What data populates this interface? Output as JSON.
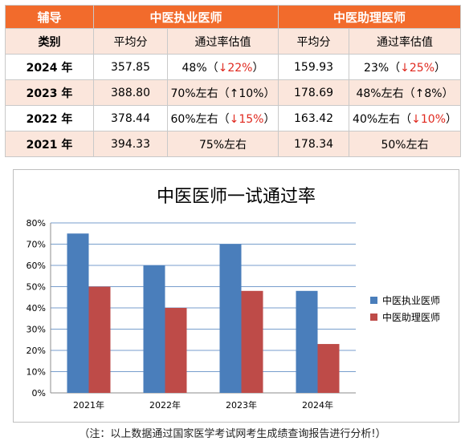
{
  "table": {
    "header": {
      "c0": "辅导",
      "group1": "中医执业医师",
      "group2": "中医助理医师"
    },
    "subheader": {
      "c0": "类别",
      "avg": "平均分",
      "rate": "通过率估值"
    },
    "rows": [
      {
        "year": "2024 年",
        "a_avg": "357.85",
        "a_rate": "48%",
        "a_chg": "↓22%",
        "b_avg": "159.93",
        "b_rate": "23%",
        "b_chg": "↓25%"
      },
      {
        "year": "2023 年",
        "a_avg": "388.80",
        "a_rate": "70%左右",
        "a_chg": "↑10%",
        "b_avg": "178.69",
        "b_rate": "48%左右",
        "b_chg": "↑8%"
      },
      {
        "year": "2022 年",
        "a_avg": "378.44",
        "a_rate": "60%左右",
        "a_chg": "↓15%",
        "b_avg": "163.42",
        "b_rate": "40%左右",
        "b_chg": "↓10%"
      },
      {
        "year": "2021 年",
        "a_avg": "394.33",
        "a_rate": "75%左右",
        "a_chg": "",
        "b_avg": "178.34",
        "b_rate": "50%左右",
        "b_chg": ""
      }
    ]
  },
  "chart_data": {
    "type": "bar",
    "title": "中医医师一试通过率",
    "categories": [
      "2021年",
      "2022年",
      "2023年",
      "2024年"
    ],
    "series": [
      {
        "name": "中医执业医师",
        "values": [
          75,
          60,
          70,
          48
        ],
        "color": "#4a7ebb"
      },
      {
        "name": "中医助理医师",
        "values": [
          50,
          40,
          48,
          23
        ],
        "color": "#be4b48"
      }
    ],
    "yticks": [
      "0%",
      "10%",
      "20%",
      "30%",
      "40%",
      "50%",
      "60%",
      "70%",
      "80%"
    ],
    "ylim": [
      0,
      80
    ],
    "grid": true,
    "legend": "right"
  },
  "footnote": "（注：以上数据通过国家医学考试网考生成绩查询报告进行分析!）"
}
